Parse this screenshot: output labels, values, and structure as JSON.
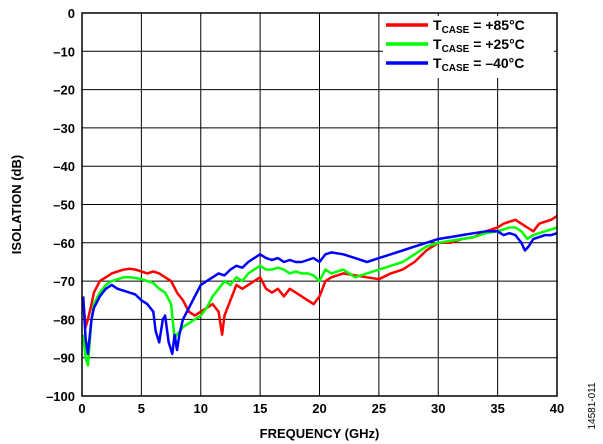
{
  "chart_data": {
    "type": "line",
    "xlabel": "FREQUENCY (GHz)",
    "ylabel": "ISOLATION (dB)",
    "xlim": [
      0,
      40
    ],
    "ylim": [
      -100,
      0
    ],
    "xticks": [
      0,
      5,
      10,
      15,
      20,
      25,
      30,
      35,
      40
    ],
    "yticks": [
      0,
      -10,
      -20,
      -30,
      -40,
      -50,
      -60,
      -70,
      -80,
      -90,
      -100
    ],
    "x_tick_labels": [
      "0",
      "5",
      "10",
      "15",
      "20",
      "25",
      "30",
      "35",
      "40"
    ],
    "y_tick_labels": [
      "0",
      "–10",
      "–20",
      "–30",
      "–40",
      "–50",
      "–60",
      "–70",
      "–80",
      "–90",
      "–100"
    ],
    "grid": true,
    "legend_position": "top-right",
    "figure_id": "14581-011",
    "series": [
      {
        "name": "TCASE = +85°C",
        "label_main": "T",
        "label_sub": "CASE",
        "label_rest": " = +85°C",
        "color": "#ff0000",
        "x": [
          0.1,
          0.3,
          0.5,
          0.8,
          1,
          1.5,
          2,
          2.5,
          3,
          3.5,
          4,
          4.5,
          5,
          5.5,
          6,
          6.5,
          7,
          7.5,
          8,
          8.5,
          9,
          9.5,
          10,
          10.5,
          11,
          11.5,
          11.8,
          12,
          12.5,
          13,
          13.5,
          14,
          14.5,
          15,
          15.5,
          16,
          16.5,
          17,
          17.5,
          18,
          18.5,
          19,
          19.5,
          20,
          20.5,
          21,
          22,
          23,
          24,
          25,
          26,
          27,
          28,
          29,
          30,
          31,
          32,
          33,
          34,
          35,
          35.5,
          36,
          36.5,
          37,
          37.5,
          38,
          38.5,
          39,
          39.5,
          40
        ],
        "y": [
          -75,
          -82,
          -80,
          -76,
          -73,
          -70,
          -69,
          -68,
          -67.5,
          -67,
          -66.8,
          -67,
          -67.5,
          -68,
          -67.5,
          -68,
          -69,
          -70,
          -73,
          -75,
          -78,
          -79,
          -78,
          -77,
          -76,
          -78,
          -84,
          -79,
          -75,
          -71,
          -72,
          -71,
          -70,
          -69,
          -72,
          -73,
          -72,
          -74,
          -72,
          -73,
          -74,
          -75,
          -76,
          -74,
          -70,
          -69,
          -68,
          -68.5,
          -69,
          -69.5,
          -68,
          -67,
          -65,
          -62,
          -60,
          -60,
          -59,
          -58.5,
          -57,
          -56,
          -55,
          -54.5,
          -54,
          -55,
          -56,
          -57,
          -55,
          -54.5,
          -54,
          -53
        ]
      },
      {
        "name": "TCASE = +25°C",
        "label_main": "T",
        "label_sub": "CASE",
        "label_rest": " = +25°C",
        "color": "#00ff00",
        "x": [
          0.1,
          0.3,
          0.5,
          0.8,
          1,
          1.5,
          2,
          2.5,
          3,
          3.5,
          4,
          4.5,
          5,
          5.5,
          6,
          6.5,
          7,
          7.5,
          7.8,
          8,
          8.5,
          9,
          9.5,
          10,
          10.5,
          11,
          11.5,
          12,
          12.5,
          13,
          13.5,
          14,
          14.5,
          15,
          15.5,
          16,
          16.5,
          17,
          17.5,
          18,
          18.5,
          19,
          19.5,
          20,
          20.5,
          21,
          22,
          23,
          24,
          25,
          26,
          27,
          28,
          29,
          30,
          31,
          32,
          33,
          34,
          35,
          35.5,
          36,
          36.5,
          37,
          37.5,
          38,
          38.5,
          39,
          39.5,
          40
        ],
        "y": [
          -84,
          -90,
          -92,
          -80,
          -76,
          -73,
          -71,
          -70,
          -69.5,
          -69,
          -69,
          -69.2,
          -69.5,
          -70,
          -70.5,
          -72,
          -73,
          -76,
          -85,
          -84,
          -82,
          -81,
          -80,
          -79,
          -77,
          -74,
          -72,
          -70,
          -71,
          -69,
          -70,
          -68,
          -67,
          -66,
          -67,
          -67,
          -66.5,
          -67,
          -68,
          -67.5,
          -68,
          -68,
          -68.5,
          -70,
          -67,
          -68,
          -67,
          -69,
          -68,
          -67,
          -66,
          -65,
          -63,
          -61,
          -60,
          -59.5,
          -59,
          -58.5,
          -57.5,
          -57,
          -56.5,
          -56,
          -56,
          -57,
          -59,
          -58,
          -57.5,
          -57,
          -56.5,
          -56
        ]
      },
      {
        "name": "TCASE = –40°C",
        "label_main": "T",
        "label_sub": "CASE",
        "label_rest": " = –40°C",
        "color": "#0000ff",
        "x": [
          0.1,
          0.3,
          0.5,
          0.8,
          1,
          1.5,
          2,
          2.5,
          3,
          3.5,
          4,
          4.5,
          5,
          5.5,
          6,
          6.2,
          6.5,
          6.8,
          7,
          7.3,
          7.6,
          7.8,
          8,
          8.2,
          8.5,
          9,
          9.5,
          10,
          10.5,
          11,
          11.5,
          12,
          12.5,
          13,
          13.5,
          14,
          14.5,
          15,
          15.5,
          16,
          16.5,
          17,
          17.5,
          18,
          18.5,
          19,
          19.5,
          20,
          20.5,
          21,
          22,
          23,
          24,
          25,
          26,
          27,
          28,
          29,
          30,
          31,
          32,
          33,
          34,
          35,
          35.5,
          36,
          36.5,
          37,
          37.3,
          37.6,
          38,
          38.5,
          39,
          39.5,
          40
        ],
        "y": [
          -74,
          -85,
          -89,
          -80,
          -77,
          -74,
          -72,
          -71,
          -72,
          -72.5,
          -73,
          -73.5,
          -75,
          -76,
          -78,
          -83,
          -86,
          -80,
          -79,
          -86,
          -89,
          -84,
          -88,
          -84,
          -80,
          -77,
          -74,
          -71,
          -70,
          -69,
          -68,
          -68.5,
          -67,
          -66,
          -66.5,
          -65,
          -64,
          -63,
          -64,
          -64.5,
          -64,
          -65,
          -64.5,
          -65,
          -65,
          -64.5,
          -64,
          -65,
          -63,
          -62.5,
          -63,
          -64,
          -65,
          -64,
          -63,
          -62,
          -61,
          -60,
          -59,
          -58.5,
          -58,
          -57.5,
          -57,
          -57,
          -58,
          -57.5,
          -58,
          -60,
          -62,
          -61,
          -59,
          -58.5,
          -58,
          -58,
          -57.5
        ]
      }
    ]
  }
}
